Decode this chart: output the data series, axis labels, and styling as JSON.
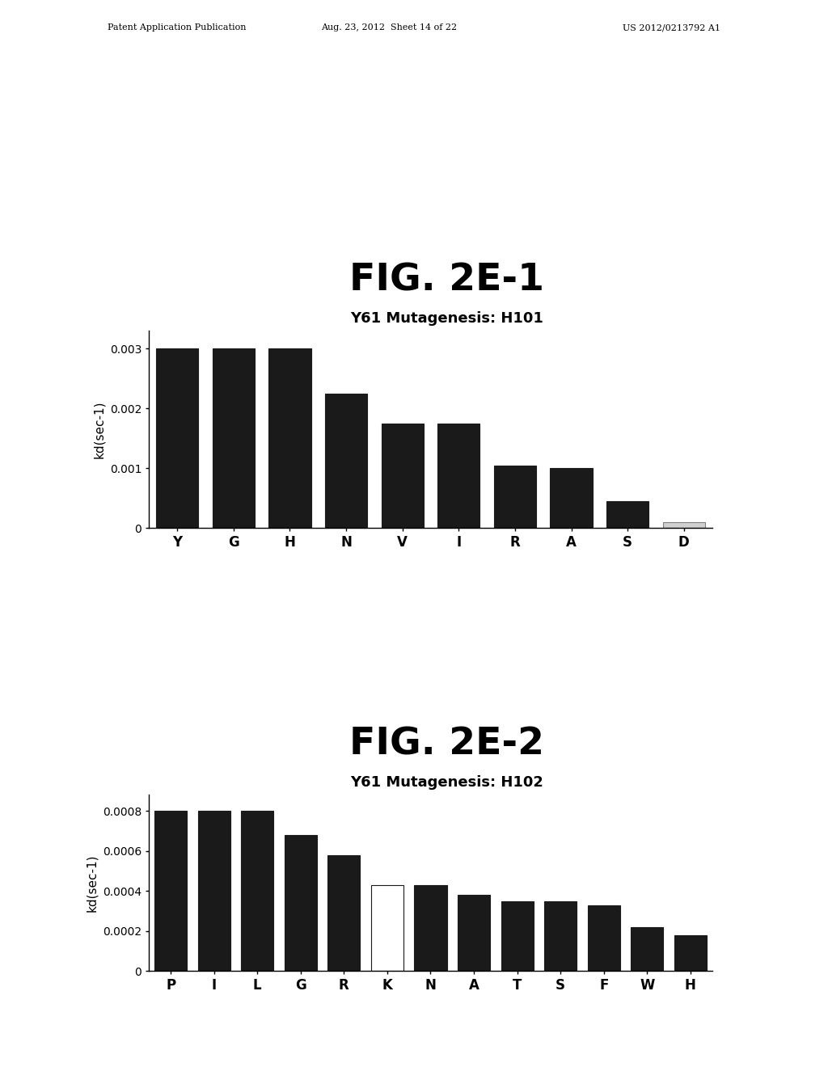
{
  "fig1": {
    "title": "FIG. 2E-1",
    "subtitle": "Y61 Mutagenesis: H101",
    "categories": [
      "Y",
      "G",
      "H",
      "N",
      "V",
      "I",
      "R",
      "A",
      "S",
      "D"
    ],
    "values": [
      0.003,
      0.003,
      0.003,
      0.00225,
      0.00175,
      0.00175,
      0.00105,
      0.001,
      0.00045,
      0.0001
    ],
    "bar_colors": [
      "#1a1a1a",
      "#1a1a1a",
      "#1a1a1a",
      "#1a1a1a",
      "#1a1a1a",
      "#1a1a1a",
      "#1a1a1a",
      "#1a1a1a",
      "#1a1a1a",
      "#d0d0d0"
    ],
    "bar_edgecolors": [
      "#1a1a1a",
      "#1a1a1a",
      "#1a1a1a",
      "#1a1a1a",
      "#1a1a1a",
      "#1a1a1a",
      "#1a1a1a",
      "#1a1a1a",
      "#1a1a1a",
      "#808080"
    ],
    "ylabel": "kd(sec-1)",
    "ylim": [
      0,
      0.0033
    ],
    "yticks": [
      0,
      0.001,
      0.002,
      0.003
    ],
    "ytick_labels": [
      "0",
      "0.001",
      "0.002",
      "0.003"
    ]
  },
  "fig2": {
    "title": "FIG. 2E-2",
    "subtitle": "Y61 Mutagenesis: H102",
    "categories": [
      "P",
      "I",
      "L",
      "G",
      "R",
      "K",
      "N",
      "A",
      "T",
      "S",
      "F",
      "W",
      "H"
    ],
    "values": [
      0.0008,
      0.0008,
      0.0008,
      0.00068,
      0.00058,
      0.00043,
      0.00043,
      0.00038,
      0.00035,
      0.00035,
      0.00033,
      0.00022,
      0.00018
    ],
    "bar_colors": [
      "#1a1a1a",
      "#1a1a1a",
      "#1a1a1a",
      "#1a1a1a",
      "#1a1a1a",
      "#ffffff",
      "#1a1a1a",
      "#1a1a1a",
      "#1a1a1a",
      "#1a1a1a",
      "#1a1a1a",
      "#1a1a1a",
      "#1a1a1a"
    ],
    "bar_edgecolors": [
      "#1a1a1a",
      "#1a1a1a",
      "#1a1a1a",
      "#1a1a1a",
      "#1a1a1a",
      "#1a1a1a",
      "#1a1a1a",
      "#1a1a1a",
      "#1a1a1a",
      "#1a1a1a",
      "#1a1a1a",
      "#1a1a1a",
      "#1a1a1a"
    ],
    "ylabel": "kd(sec-1)",
    "ylim": [
      0,
      0.00088
    ],
    "yticks": [
      0,
      0.0002,
      0.0004,
      0.0006,
      0.0008
    ],
    "ytick_labels": [
      "0",
      "0.0002",
      "0.0004",
      "0.0006",
      "0.0008"
    ]
  },
  "header_left": "Patent Application Publication",
  "header_mid": "Aug. 23, 2012  Sheet 14 of 22",
  "header_right": "US 2012/0213792 A1",
  "background_color": "#ffffff",
  "title_fontsize": 34,
  "subtitle_fontsize": 13,
  "axis_label_fontsize": 11,
  "tick_fontsize": 10,
  "header_fontsize": 8
}
